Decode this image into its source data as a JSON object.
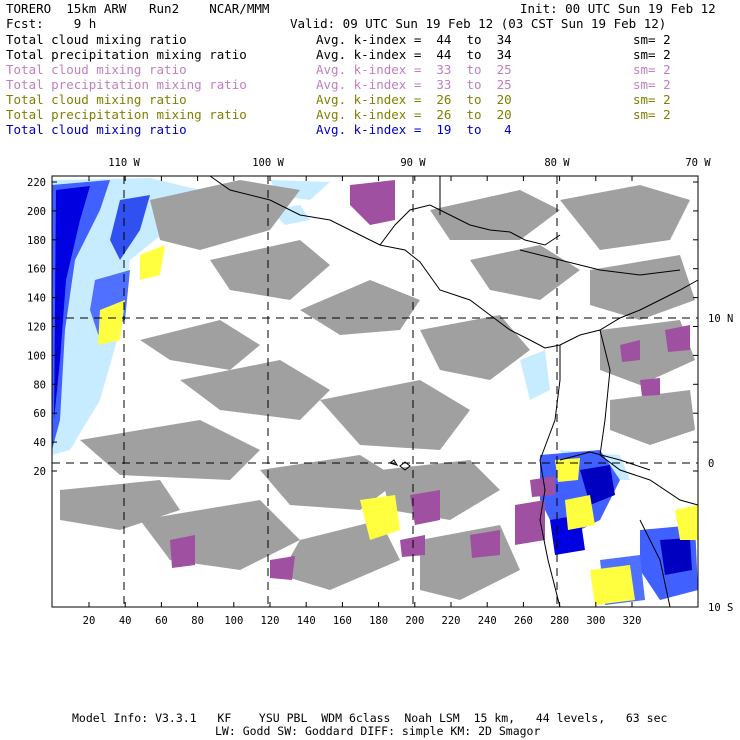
{
  "header": {
    "model_line": "TORERO  15km ARW   Run2    NCAR/MMM",
    "init_line": "Init: 00 UTC Sun 19 Feb 12",
    "fcst_line": "Fcst:    9 h",
    "valid_line": "Valid: 09 UTC Sun 19 Feb 12 (03 CST Sun 19 Feb 12)"
  },
  "legend": [
    {
      "field": "Total cloud mixing ratio",
      "index": "Avg. k-index =  44  to  34",
      "sm": "sm= 2",
      "color": "#000000"
    },
    {
      "field": "Total precipitation mixing ratio",
      "index": "Avg. k-index =  44  to  34",
      "sm": "sm= 2",
      "color": "#000000"
    },
    {
      "field": "Total cloud mixing ratio",
      "index": "Avg. k-index =  33  to  25",
      "sm": "sm= 2",
      "color": "#c080c0"
    },
    {
      "field": "Total precipitation mixing ratio",
      "index": "Avg. k-index =  33  to  25",
      "sm": "sm= 2",
      "color": "#c080c0"
    },
    {
      "field": "Total cloud mixing ratio",
      "index": "Avg. k-index =  26  to  20",
      "sm": "sm= 2",
      "color": "#808000"
    },
    {
      "field": "Total precipitation mixing ratio",
      "index": "Avg. k-index =  26  to  20",
      "sm": "sm= 2",
      "color": "#808000"
    },
    {
      "field": "Total cloud mixing ratio",
      "index": "Avg. k-index =  19  to   4",
      "sm": "",
      "color": "#0000c0"
    }
  ],
  "map": {
    "lon_labels": [
      "110 W",
      "100 W",
      "90 W",
      "80 W",
      "70 W"
    ],
    "lat_labels": [
      "10 N",
      "0",
      "10 S"
    ],
    "y_ticks": [
      "220",
      "200",
      "180",
      "160",
      "140",
      "120",
      "100",
      "80",
      "60",
      "40",
      "20"
    ],
    "x_ticks": [
      "20",
      "40",
      "60",
      "80",
      "100",
      "120",
      "140",
      "160",
      "180",
      "200",
      "220",
      "240",
      "260",
      "280",
      "300",
      "320"
    ],
    "colors": {
      "gray": "#a0a0a0",
      "purple": "#a050a0",
      "yellow": "#ffff40",
      "light_blue": "#c8ecff",
      "blue": "#0000e0",
      "coast": "#000000"
    }
  },
  "footer": {
    "line1": "Model Info: V3.3.1   KF    YSU PBL  WDM 6class  Noah LSM  15 km,   44 levels,   63 sec",
    "line2": "LW: Godd SW: Goddard DIFF: simple KM: 2D Smagor"
  }
}
